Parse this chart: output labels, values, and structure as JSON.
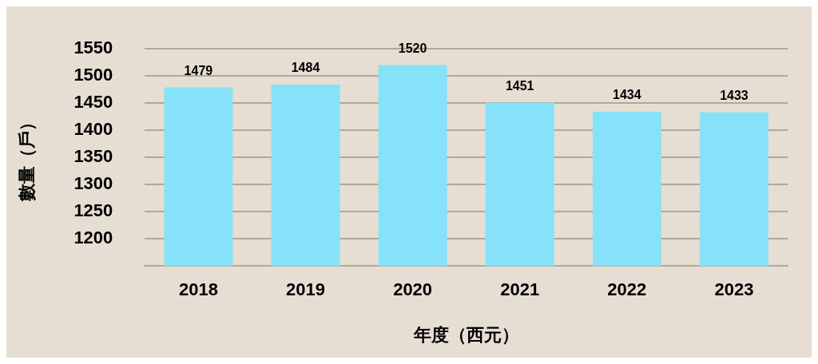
{
  "chart_data": {
    "type": "bar",
    "xlabel": "年度（西元）",
    "ylabel": "數量（戶）",
    "categories": [
      "2018",
      "2019",
      "2020",
      "2021",
      "2022",
      "2023"
    ],
    "values": [
      1479,
      1484,
      1520,
      1451,
      1434,
      1433
    ],
    "color": "#85e2f9",
    "ylim": [
      1150,
      1550
    ],
    "yticks": [
      1200,
      1250,
      1300,
      1350,
      1400,
      1450,
      1500,
      1550
    ],
    "grid": "y",
    "data_labels": true
  }
}
